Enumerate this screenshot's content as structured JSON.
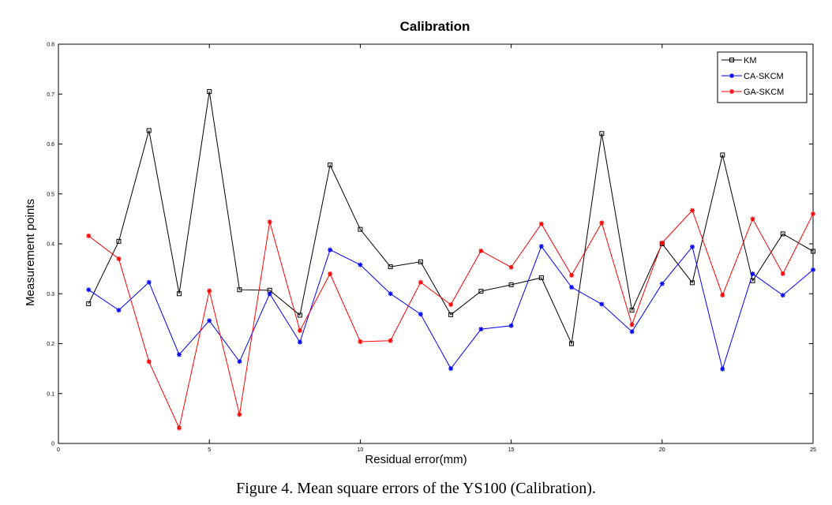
{
  "chart_data": {
    "type": "line",
    "title": "Calibration",
    "xlabel": "Residual error(mm)",
    "ylabel": "Measurement points",
    "xlim": [
      0,
      25
    ],
    "ylim": [
      0,
      0.8
    ],
    "xticks": [
      0,
      5,
      10,
      15,
      20,
      25
    ],
    "yticks": [
      0,
      0.1,
      0.2,
      0.3,
      0.4,
      0.5,
      0.6,
      0.7,
      0.8
    ],
    "grid": false,
    "legend_position": "top-right",
    "x": [
      1,
      2,
      3,
      4,
      5,
      6,
      7,
      8,
      9,
      10,
      11,
      12,
      13,
      14,
      15,
      16,
      17,
      18,
      19,
      20,
      21,
      22,
      23,
      24,
      25
    ],
    "series": [
      {
        "name": "KM",
        "color": "#000000",
        "marker": "square",
        "values": [
          0.28,
          0.405,
          0.627,
          0.3,
          0.705,
          0.308,
          0.307,
          0.257,
          0.558,
          0.429,
          0.354,
          0.364,
          0.258,
          0.305,
          0.318,
          0.332,
          0.2,
          0.621,
          0.267,
          0.4,
          0.322,
          0.578,
          0.326,
          0.42,
          0.385
        ]
      },
      {
        "name": "CA-SKCM",
        "color": "#0000ff",
        "marker": "star",
        "values": [
          0.308,
          0.267,
          0.323,
          0.178,
          0.246,
          0.164,
          0.3,
          0.203,
          0.388,
          0.358,
          0.3,
          0.259,
          0.15,
          0.229,
          0.236,
          0.395,
          0.313,
          0.279,
          0.224,
          0.32,
          0.394,
          0.149,
          0.34,
          0.297,
          0.348
        ]
      },
      {
        "name": "GA-SKCM",
        "color": "#ff0000",
        "marker": "star",
        "values": [
          0.416,
          0.37,
          0.164,
          0.031,
          0.306,
          0.058,
          0.444,
          0.226,
          0.34,
          0.204,
          0.206,
          0.323,
          0.278,
          0.386,
          0.353,
          0.44,
          0.337,
          0.442,
          0.238,
          0.402,
          0.467,
          0.297,
          0.45,
          0.34,
          0.46
        ]
      }
    ]
  },
  "caption": "Figure 4. Mean square errors of the YS100 (Calibration)."
}
